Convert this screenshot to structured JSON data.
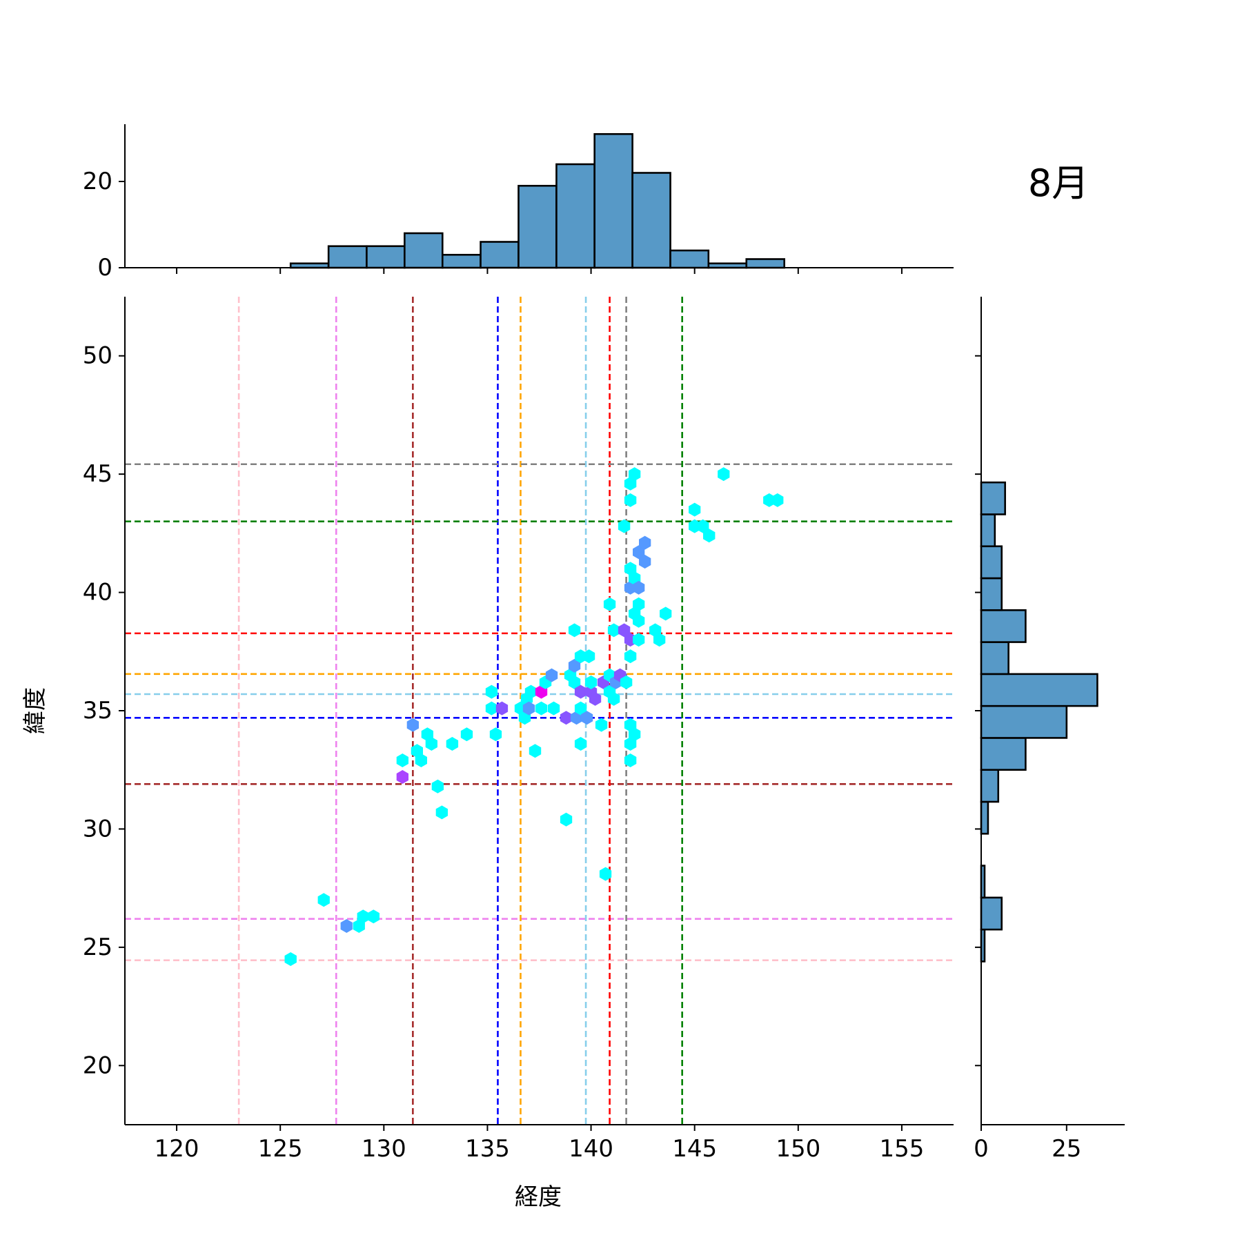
{
  "chart_data": {
    "type": "hexbin",
    "title": "8月",
    "xlabel": "経度",
    "ylabel": "緯度",
    "xlim": [
      117.5,
      157.5
    ],
    "ylim": [
      17.5,
      52.5
    ],
    "x_ticks": [
      120,
      125,
      130,
      135,
      140,
      145,
      150,
      155
    ],
    "y_ticks": [
      20,
      25,
      30,
      35,
      40,
      45,
      50
    ],
    "marginal_x": {
      "type": "histogram",
      "bin_edges": [
        125.5,
        127.33,
        129.17,
        131.0,
        132.83,
        134.67,
        136.5,
        138.33,
        140.17,
        142.0,
        143.83,
        145.67,
        147.5,
        149.33
      ],
      "counts": [
        1,
        5,
        5,
        8,
        3,
        6,
        19,
        24,
        31,
        22,
        4,
        1,
        2
      ],
      "ticks": [
        0,
        20
      ],
      "color": "#5799c7"
    },
    "marginal_y": {
      "type": "histogram",
      "bin_edges": [
        24.4,
        25.75,
        27.1,
        28.45,
        29.8,
        31.15,
        32.5,
        33.85,
        35.2,
        36.55,
        37.9,
        39.25,
        40.6,
        41.95,
        43.3,
        44.65,
        46.0
      ],
      "counts": [
        1,
        6,
        1,
        0,
        2,
        5,
        13,
        25,
        34,
        8,
        13,
        6,
        6,
        4,
        7,
        0
      ],
      "ticks": [
        0,
        25
      ],
      "color": "#5799c7"
    },
    "reference_lines": [
      {
        "color": "#ffc0cb",
        "x": 123.0,
        "y": 24.45
      },
      {
        "color": "#ee82ee",
        "x": 127.7,
        "y": 26.2
      },
      {
        "color": "#a52a2a",
        "x": 131.4,
        "y": 31.9
      },
      {
        "color": "#0000ff",
        "x": 135.5,
        "y": 34.7
      },
      {
        "color": "#ffa500",
        "x": 136.6,
        "y": 36.55
      },
      {
        "color": "#87ceeb",
        "x": 139.75,
        "y": 35.7
      },
      {
        "color": "#ff0000",
        "x": 140.9,
        "y": 38.27
      },
      {
        "color": "#808080",
        "x": 141.7,
        "y": 45.42
      },
      {
        "color": "#008000",
        "x": 144.4,
        "y": 43.0
      }
    ],
    "points": [
      {
        "x": 125.5,
        "y": 24.5,
        "c": "#00ffff"
      },
      {
        "x": 127.1,
        "y": 27.0,
        "c": "#00ffff"
      },
      {
        "x": 128.2,
        "y": 25.9,
        "c": "#5599ff"
      },
      {
        "x": 128.8,
        "y": 25.9,
        "c": "#00ffff"
      },
      {
        "x": 129.0,
        "y": 26.3,
        "c": "#00ffff"
      },
      {
        "x": 129.5,
        "y": 26.3,
        "c": "#00ffff"
      },
      {
        "x": 130.9,
        "y": 32.2,
        "c": "#aa44ff"
      },
      {
        "x": 130.9,
        "y": 32.9,
        "c": "#00ffff"
      },
      {
        "x": 131.4,
        "y": 34.4,
        "c": "#5599ff"
      },
      {
        "x": 131.6,
        "y": 33.3,
        "c": "#00ffff"
      },
      {
        "x": 131.8,
        "y": 32.9,
        "c": "#00ffff"
      },
      {
        "x": 132.1,
        "y": 34.0,
        "c": "#00ffff"
      },
      {
        "x": 132.3,
        "y": 33.6,
        "c": "#00ffff"
      },
      {
        "x": 132.6,
        "y": 31.8,
        "c": "#00ffff"
      },
      {
        "x": 132.8,
        "y": 30.7,
        "c": "#00ffff"
      },
      {
        "x": 133.3,
        "y": 33.6,
        "c": "#00ffff"
      },
      {
        "x": 134.0,
        "y": 34.0,
        "c": "#00ffff"
      },
      {
        "x": 135.2,
        "y": 35.1,
        "c": "#00ffff"
      },
      {
        "x": 135.2,
        "y": 35.8,
        "c": "#00ffff"
      },
      {
        "x": 135.4,
        "y": 34.0,
        "c": "#00ffff"
      },
      {
        "x": 135.7,
        "y": 35.1,
        "c": "#8855ff"
      },
      {
        "x": 136.6,
        "y": 35.1,
        "c": "#00ffff"
      },
      {
        "x": 136.8,
        "y": 34.7,
        "c": "#00ffff"
      },
      {
        "x": 136.9,
        "y": 35.5,
        "c": "#00ffff"
      },
      {
        "x": 137.0,
        "y": 35.1,
        "c": "#5599ff"
      },
      {
        "x": 137.1,
        "y": 35.8,
        "c": "#00ffff"
      },
      {
        "x": 137.3,
        "y": 33.3,
        "c": "#00ffff"
      },
      {
        "x": 137.6,
        "y": 35.8,
        "c": "#ee00ee"
      },
      {
        "x": 137.6,
        "y": 35.1,
        "c": "#00ffff"
      },
      {
        "x": 137.8,
        "y": 36.2,
        "c": "#00ffff"
      },
      {
        "x": 138.1,
        "y": 36.5,
        "c": "#5599ff"
      },
      {
        "x": 138.2,
        "y": 35.1,
        "c": "#00ffff"
      },
      {
        "x": 138.8,
        "y": 34.7,
        "c": "#8855ff"
      },
      {
        "x": 138.8,
        "y": 30.4,
        "c": "#00ffff"
      },
      {
        "x": 139.0,
        "y": 36.5,
        "c": "#00ffff"
      },
      {
        "x": 139.2,
        "y": 38.4,
        "c": "#00ffff"
      },
      {
        "x": 139.2,
        "y": 36.9,
        "c": "#5599ff"
      },
      {
        "x": 139.2,
        "y": 36.2,
        "c": "#00ffff"
      },
      {
        "x": 139.3,
        "y": 34.7,
        "c": "#5599ff"
      },
      {
        "x": 139.5,
        "y": 37.3,
        "c": "#00ffff"
      },
      {
        "x": 139.5,
        "y": 35.8,
        "c": "#8855ff"
      },
      {
        "x": 139.5,
        "y": 35.1,
        "c": "#00ffff"
      },
      {
        "x": 139.5,
        "y": 33.6,
        "c": "#00ffff"
      },
      {
        "x": 139.8,
        "y": 34.7,
        "c": "#5599ff"
      },
      {
        "x": 139.9,
        "y": 37.3,
        "c": "#00ffff"
      },
      {
        "x": 140.0,
        "y": 35.8,
        "c": "#8855ff"
      },
      {
        "x": 140.0,
        "y": 36.2,
        "c": "#00ffff"
      },
      {
        "x": 140.2,
        "y": 35.5,
        "c": "#8855ff"
      },
      {
        "x": 140.5,
        "y": 34.4,
        "c": "#00ffff"
      },
      {
        "x": 140.6,
        "y": 36.2,
        "c": "#8855ff"
      },
      {
        "x": 140.7,
        "y": 28.1,
        "c": "#00ffff"
      },
      {
        "x": 140.9,
        "y": 39.5,
        "c": "#00ffff"
      },
      {
        "x": 140.9,
        "y": 36.5,
        "c": "#00ffff"
      },
      {
        "x": 140.9,
        "y": 35.8,
        "c": "#00ffff"
      },
      {
        "x": 141.1,
        "y": 38.4,
        "c": "#00ffff"
      },
      {
        "x": 141.1,
        "y": 35.5,
        "c": "#00ffff"
      },
      {
        "x": 141.2,
        "y": 36.2,
        "c": "#5599ff"
      },
      {
        "x": 141.4,
        "y": 36.5,
        "c": "#8855ff"
      },
      {
        "x": 141.6,
        "y": 42.8,
        "c": "#00ffff"
      },
      {
        "x": 141.6,
        "y": 38.4,
        "c": "#8855ff"
      },
      {
        "x": 141.7,
        "y": 36.2,
        "c": "#00ffff"
      },
      {
        "x": 141.9,
        "y": 44.6,
        "c": "#00ffff"
      },
      {
        "x": 141.9,
        "y": 43.9,
        "c": "#00ffff"
      },
      {
        "x": 141.9,
        "y": 41.0,
        "c": "#00ffff"
      },
      {
        "x": 141.9,
        "y": 40.2,
        "c": "#5599ff"
      },
      {
        "x": 141.9,
        "y": 38.0,
        "c": "#8855ff"
      },
      {
        "x": 141.9,
        "y": 37.3,
        "c": "#00ffff"
      },
      {
        "x": 141.9,
        "y": 34.4,
        "c": "#00ffff"
      },
      {
        "x": 141.9,
        "y": 33.6,
        "c": "#00ffff"
      },
      {
        "x": 141.9,
        "y": 32.9,
        "c": "#00ffff"
      },
      {
        "x": 142.1,
        "y": 45.0,
        "c": "#00ffff"
      },
      {
        "x": 142.1,
        "y": 40.6,
        "c": "#00ffff"
      },
      {
        "x": 142.1,
        "y": 39.1,
        "c": "#00ffff"
      },
      {
        "x": 142.1,
        "y": 34.0,
        "c": "#00ffff"
      },
      {
        "x": 142.3,
        "y": 41.7,
        "c": "#5599ff"
      },
      {
        "x": 142.3,
        "y": 40.2,
        "c": "#5599ff"
      },
      {
        "x": 142.3,
        "y": 39.5,
        "c": "#00ffff"
      },
      {
        "x": 142.3,
        "y": 38.8,
        "c": "#00ffff"
      },
      {
        "x": 142.3,
        "y": 38.0,
        "c": "#00ffff"
      },
      {
        "x": 142.6,
        "y": 42.1,
        "c": "#5599ff"
      },
      {
        "x": 142.6,
        "y": 41.3,
        "c": "#5599ff"
      },
      {
        "x": 143.1,
        "y": 38.4,
        "c": "#00ffff"
      },
      {
        "x": 143.3,
        "y": 38.0,
        "c": "#00ffff"
      },
      {
        "x": 143.6,
        "y": 39.1,
        "c": "#00ffff"
      },
      {
        "x": 145.0,
        "y": 43.5,
        "c": "#00ffff"
      },
      {
        "x": 145.0,
        "y": 42.8,
        "c": "#00ffff"
      },
      {
        "x": 145.4,
        "y": 42.8,
        "c": "#00ffff"
      },
      {
        "x": 145.7,
        "y": 42.4,
        "c": "#00ffff"
      },
      {
        "x": 146.4,
        "y": 45.0,
        "c": "#00ffff"
      },
      {
        "x": 148.6,
        "y": 43.9,
        "c": "#00ffff"
      },
      {
        "x": 149.0,
        "y": 43.9,
        "c": "#00ffff"
      }
    ]
  }
}
